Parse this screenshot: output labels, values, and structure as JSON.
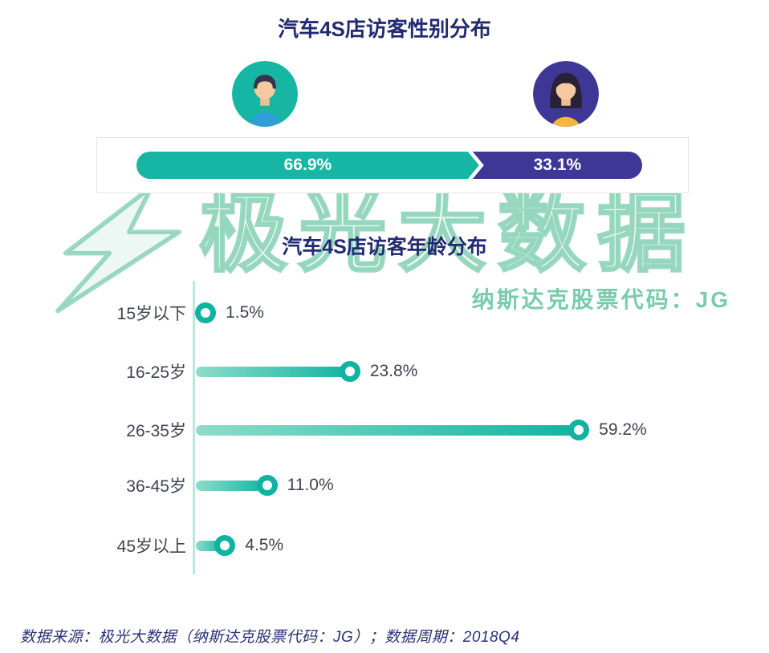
{
  "gender_chart": {
    "title": "汽车4S店访客性别分布",
    "male_label": "66.9%",
    "female_label": "33.1%",
    "male_value": 66.9,
    "female_value": 33.1
  },
  "age_chart": {
    "title": "汽车4S店访客年龄分布",
    "categories": [
      "15岁以下",
      "16-25岁",
      "26-35岁",
      "36-45岁",
      "45岁以上"
    ],
    "values": [
      1.5,
      23.8,
      59.2,
      11.0,
      4.5
    ],
    "labels": [
      "1.5%",
      "23.8%",
      "59.2%",
      "11.0%",
      "4.5%"
    ]
  },
  "watermark": {
    "brand": "极光大数据",
    "subtitle": "纳斯达克股票代码：JG"
  },
  "footer": {
    "text": "数据来源：极光大数据（纳斯达克股票代码：JG）；数据周期：2018Q4"
  },
  "colors": {
    "teal": "#17b5a3",
    "purple": "#3e3795",
    "navy_title": "#232a72",
    "watermark_green": "#4cba92",
    "label_text": "#3f4350"
  },
  "chart_data": [
    {
      "type": "bar",
      "subtype": "horizontal-stacked",
      "title": "汽车4S店访客性别分布",
      "categories": [
        "male",
        "female"
      ],
      "values": [
        66.9,
        33.1
      ],
      "unit": "%",
      "colors": [
        "#17b5a3",
        "#3e3795"
      ],
      "legend": "avatar icons (male teal, female purple)"
    },
    {
      "type": "bar",
      "subtype": "horizontal-lollipop",
      "title": "汽车4S店访客年龄分布",
      "categories": [
        "15岁以下",
        "16-25岁",
        "26-35岁",
        "36-45岁",
        "45岁以上"
      ],
      "values": [
        1.5,
        23.8,
        59.2,
        11.0,
        4.5
      ],
      "unit": "%",
      "xlim": [
        0,
        60
      ],
      "grid": false,
      "data_labels": [
        "1.5%",
        "23.8%",
        "59.2%",
        "11.0%",
        "4.5%"
      ]
    }
  ]
}
